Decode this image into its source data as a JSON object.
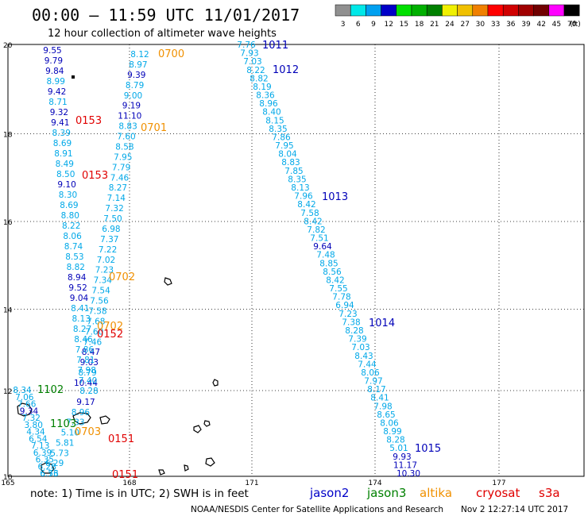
{
  "header": {
    "title": "00:00 — 11:59 UTC 11/01/2017",
    "subtitle": "12 hour collection of altimeter wave heights"
  },
  "legend": {
    "unit": "(ft)",
    "bins": [
      {
        "label": "3",
        "color": "#909090"
      },
      {
        "label": "6",
        "color": "#00e8e8"
      },
      {
        "label": "9",
        "color": "#00a0f0"
      },
      {
        "label": "12",
        "color": "#0000c8"
      },
      {
        "label": "15",
        "color": "#00e000"
      },
      {
        "label": "18",
        "color": "#00b000"
      },
      {
        "label": "21",
        "color": "#008000"
      },
      {
        "label": "24",
        "color": "#f0f000"
      },
      {
        "label": "27",
        "color": "#f0c000"
      },
      {
        "label": "30",
        "color": "#f08000"
      },
      {
        "label": "33",
        "color": "#ff0000"
      },
      {
        "label": "36",
        "color": "#d00000"
      },
      {
        "label": "39",
        "color": "#a00000"
      },
      {
        "label": "42",
        "color": "#700000"
      },
      {
        "label": "45",
        "color": "#ff00ff"
      },
      {
        "label": "70",
        "color": "#000000"
      }
    ]
  },
  "axes": {
    "lat_ticks": [
      "20",
      "18",
      "16",
      "14",
      "12",
      "10"
    ],
    "lon_ticks": [
      "165",
      "168",
      "171",
      "174",
      "177"
    ]
  },
  "footer": {
    "note_prefix": "note: 1) Time is in UTC; 2) SWH is in feet",
    "credit": "NOAA/NESDIS Center for Satellite Applications and Research",
    "timestamp": "Nov  2 12:27:14 UTC 2017"
  },
  "satellites": [
    {
      "name": "jason2",
      "color": "#0000c8"
    },
    {
      "name": "jason3",
      "color": "#008000"
    },
    {
      "name": "altika",
      "color": "#f09000"
    },
    {
      "name": "cryosat",
      "color": "#e00000"
    },
    {
      "name": "s3a",
      "color": "#e00000"
    }
  ],
  "colors": {
    "light": "#00a8e8",
    "dark": "#0000b8",
    "green": "#008000",
    "orange": "#f09000",
    "red": "#e00000"
  },
  "tracks": [
    {
      "id": "track-east",
      "x0": 310,
      "y0": 56,
      "x1": 514,
      "y1": 596,
      "values": [
        {
          "v": "7.76",
          "c": "light"
        },
        {
          "v": "7.93",
          "c": "light"
        },
        {
          "v": "7.03",
          "c": "light"
        },
        {
          "v": "8.22",
          "c": "light"
        },
        {
          "v": "8.82",
          "c": "light"
        },
        {
          "v": "8.19",
          "c": "light"
        },
        {
          "v": "8.36",
          "c": "light"
        },
        {
          "v": "8.96",
          "c": "light"
        },
        {
          "v": "8.40",
          "c": "light"
        },
        {
          "v": "8.15",
          "c": "light"
        },
        {
          "v": "8.35",
          "c": "light"
        },
        {
          "v": "7.86",
          "c": "light"
        },
        {
          "v": "7.95",
          "c": "light"
        },
        {
          "v": "8.04",
          "c": "light"
        },
        {
          "v": "8.83",
          "c": "light"
        },
        {
          "v": "7.85",
          "c": "light"
        },
        {
          "v": "8.35",
          "c": "light"
        },
        {
          "v": "8.13",
          "c": "light"
        },
        {
          "v": "7.96",
          "c": "light"
        },
        {
          "v": "8.42",
          "c": "light"
        },
        {
          "v": "7.58",
          "c": "light"
        },
        {
          "v": "8.42",
          "c": "light"
        },
        {
          "v": "7.82",
          "c": "light"
        },
        {
          "v": "7.51",
          "c": "light"
        },
        {
          "v": "9.64",
          "c": "dark"
        },
        {
          "v": "7.48",
          "c": "light"
        },
        {
          "v": "8.85",
          "c": "light"
        },
        {
          "v": "8.56",
          "c": "light"
        },
        {
          "v": "8.42",
          "c": "light"
        },
        {
          "v": "7.55",
          "c": "light"
        },
        {
          "v": "7.78",
          "c": "light"
        },
        {
          "v": "6.94",
          "c": "light"
        },
        {
          "v": "7.23",
          "c": "light"
        },
        {
          "v": "7.38",
          "c": "light"
        },
        {
          "v": "8.28",
          "c": "light"
        },
        {
          "v": "7.39",
          "c": "light"
        },
        {
          "v": "7.03",
          "c": "light"
        },
        {
          "v": "8.43",
          "c": "light"
        },
        {
          "v": "7.44",
          "c": "light"
        },
        {
          "v": "8.06",
          "c": "light"
        },
        {
          "v": "7.97",
          "c": "light"
        },
        {
          "v": "8.17",
          "c": "light"
        },
        {
          "v": "8.41",
          "c": "light"
        },
        {
          "v": "7.98",
          "c": "light"
        },
        {
          "v": "8.65",
          "c": "light"
        },
        {
          "v": "8.06",
          "c": "light"
        },
        {
          "v": "8.99",
          "c": "light"
        },
        {
          "v": "8.28",
          "c": "light"
        },
        {
          "v": "5.01",
          "c": "light"
        },
        {
          "v": "9.93",
          "c": "dark"
        },
        {
          "v": "11.17",
          "c": "dark"
        },
        {
          "v": "10.30",
          "c": "dark"
        }
      ]
    },
    {
      "id": "track-mid",
      "x0": 176,
      "y0": 68,
      "x1": 108,
      "y1": 482,
      "values": [
        {
          "v": "8.12",
          "c": "light"
        },
        {
          "v": "8.97",
          "c": "light"
        },
        {
          "v": "9.39",
          "c": "dark"
        },
        {
          "v": "8.79",
          "c": "light"
        },
        {
          "v": "9.00",
          "c": "light"
        },
        {
          "v": "9.19",
          "c": "dark"
        },
        {
          "v": "11.10",
          "c": "dark"
        },
        {
          "v": "8.83",
          "c": "light"
        },
        {
          "v": "7.60",
          "c": "light"
        },
        {
          "v": "8.58",
          "c": "light"
        },
        {
          "v": "7.95",
          "c": "light"
        },
        {
          "v": "7.79",
          "c": "light"
        },
        {
          "v": "7.46",
          "c": "light"
        },
        {
          "v": "8.27",
          "c": "light"
        },
        {
          "v": "7.14",
          "c": "light"
        },
        {
          "v": "7.32",
          "c": "light"
        },
        {
          "v": "7.50",
          "c": "light"
        },
        {
          "v": "6.98",
          "c": "light"
        },
        {
          "v": "7.37",
          "c": "light"
        },
        {
          "v": "7.22",
          "c": "light"
        },
        {
          "v": "7.02",
          "c": "light"
        },
        {
          "v": "7.23",
          "c": "light"
        },
        {
          "v": "7.34",
          "c": "light"
        },
        {
          "v": "7.54",
          "c": "light"
        },
        {
          "v": "7.56",
          "c": "light"
        },
        {
          "v": "7.58",
          "c": "light"
        },
        {
          "v": "7.68",
          "c": "light"
        },
        {
          "v": "7.60",
          "c": "light"
        },
        {
          "v": "7.46",
          "c": "light"
        },
        {
          "v": "8.47",
          "c": "dark"
        },
        {
          "v": "9.03",
          "c": "dark"
        },
        {
          "v": "8.79",
          "c": "light"
        },
        {
          "v": "10.44",
          "c": "dark"
        }
      ]
    },
    {
      "id": "track-west",
      "x0": 66,
      "y0": 63,
      "x1": 112,
      "y1": 492,
      "values": [
        {
          "v": "9.55",
          "c": "dark"
        },
        {
          "v": "9.79",
          "c": "dark"
        },
        {
          "v": "9.84",
          "c": "dark"
        },
        {
          "v": "8.99",
          "c": "light"
        },
        {
          "v": "9.42",
          "c": "dark"
        },
        {
          "v": "8.71",
          "c": "light"
        },
        {
          "v": "9.32",
          "c": "dark"
        },
        {
          "v": "9.41",
          "c": "dark"
        },
        {
          "v": "8.39",
          "c": "light"
        },
        {
          "v": "8.69",
          "c": "light"
        },
        {
          "v": "8.91",
          "c": "light"
        },
        {
          "v": "8.49",
          "c": "light"
        },
        {
          "v": "8.50",
          "c": "light"
        },
        {
          "v": "9.10",
          "c": "dark"
        },
        {
          "v": "8.30",
          "c": "light"
        },
        {
          "v": "8.69",
          "c": "light"
        },
        {
          "v": "8.80",
          "c": "light"
        },
        {
          "v": "8.22",
          "c": "light"
        },
        {
          "v": "8.06",
          "c": "light"
        },
        {
          "v": "8.74",
          "c": "light"
        },
        {
          "v": "8.53",
          "c": "light"
        },
        {
          "v": "8.82",
          "c": "light"
        },
        {
          "v": "8.94",
          "c": "dark"
        },
        {
          "v": "9.52",
          "c": "dark"
        },
        {
          "v": "9.04",
          "c": "dark"
        },
        {
          "v": "8.41",
          "c": "light"
        },
        {
          "v": "8.13",
          "c": "light"
        },
        {
          "v": "8.27",
          "c": "light"
        },
        {
          "v": "8.46",
          "c": "light"
        },
        {
          "v": "7.86",
          "c": "light"
        },
        {
          "v": "7.81",
          "c": "light"
        },
        {
          "v": "7.98",
          "c": "light"
        },
        {
          "v": "7.40",
          "c": "light"
        },
        {
          "v": "8.28",
          "c": "light"
        }
      ]
    },
    {
      "id": "track-southwest",
      "x0": 108,
      "y0": 506,
      "x1": 62,
      "y1": 596,
      "values": [
        {
          "v": "9.17",
          "c": "dark"
        },
        {
          "v": "8.96",
          "c": "light"
        },
        {
          "v": "7.33",
          "c": "light"
        },
        {
          "v": "5.10",
          "c": "light"
        },
        {
          "v": "5.81",
          "c": "light"
        },
        {
          "v": "5.73",
          "c": "light"
        },
        {
          "v": "6.29",
          "c": "light"
        },
        {
          "v": "6.73",
          "c": "light"
        }
      ]
    },
    {
      "id": "track-jason3",
      "x0": 28,
      "y0": 491,
      "x1": 62,
      "y1": 596,
      "values": [
        {
          "v": "8.34",
          "c": "light"
        },
        {
          "v": "7.06",
          "c": "light"
        },
        {
          "v": "7.66",
          "c": "light"
        },
        {
          "v": "9.34",
          "c": "dark"
        },
        {
          "v": "7.32",
          "c": "light"
        },
        {
          "v": "3.80",
          "c": "light"
        },
        {
          "v": "4.34",
          "c": "light"
        },
        {
          "v": "6.54",
          "c": "light"
        },
        {
          "v": "7.13",
          "c": "light"
        },
        {
          "v": "6.39",
          "c": "light"
        },
        {
          "v": "6.35",
          "c": "light"
        },
        {
          "v": "6.28",
          "c": "light"
        },
        {
          "v": "6.56",
          "c": "light"
        }
      ]
    }
  ],
  "pass_labels": [
    {
      "text": "1011",
      "c": "dark"
    },
    {
      "text": "1012",
      "c": "dark"
    },
    {
      "text": "1013",
      "c": "dark"
    },
    {
      "text": "1014",
      "c": "dark"
    },
    {
      "text": "1015",
      "c": "dark"
    },
    {
      "text": "0700",
      "c": "orange"
    },
    {
      "text": "0701",
      "c": "orange"
    },
    {
      "text": "0702",
      "c": "orange"
    },
    {
      "text": "0702",
      "c": "orange"
    },
    {
      "text": "0703",
      "c": "orange"
    },
    {
      "text": "0153",
      "c": "red"
    },
    {
      "text": "0153",
      "c": "red"
    },
    {
      "text": "0152",
      "c": "red"
    },
    {
      "text": "0151",
      "c": "red"
    },
    {
      "text": "0151",
      "c": "red"
    },
    {
      "text": "1102",
      "c": "green"
    },
    {
      "text": "1103",
      "c": "green"
    }
  ]
}
